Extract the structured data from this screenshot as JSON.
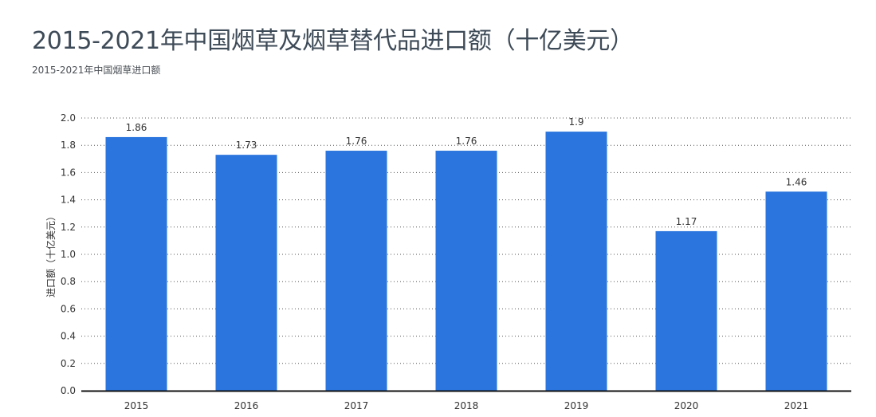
{
  "header": {
    "title": "2015-2021年中国烟草及烟草替代品进口额（十亿美元）",
    "subtitle": "2015-2021年中国烟草进口额"
  },
  "colors": {
    "bar": "#2a75de",
    "grid": "#555555",
    "axis": "#111111",
    "title": "#3d4a57"
  },
  "chart_data": {
    "type": "bar",
    "categories": [
      "2015",
      "2016",
      "2017",
      "2018",
      "2019",
      "2020",
      "2021"
    ],
    "values": [
      1.86,
      1.73,
      1.76,
      1.76,
      1.9,
      1.17,
      1.46
    ],
    "value_labels": [
      "1.86",
      "1.73",
      "1.76",
      "1.76",
      "1.9",
      "1.17",
      "1.46"
    ],
    "title": "2015-2021年中国烟草及烟草替代品进口额（十亿美元）",
    "subtitle": "2015-2021年中国烟草进口额",
    "xlabel": "",
    "ylabel": "进口额（十亿美元）",
    "ylim": [
      0,
      2.0
    ],
    "yticks": [
      "0.0",
      "0.2",
      "0.4",
      "0.6",
      "0.8",
      "1.0",
      "1.2",
      "1.4",
      "1.6",
      "1.8",
      "2.0"
    ],
    "grid": true,
    "legend": false
  }
}
